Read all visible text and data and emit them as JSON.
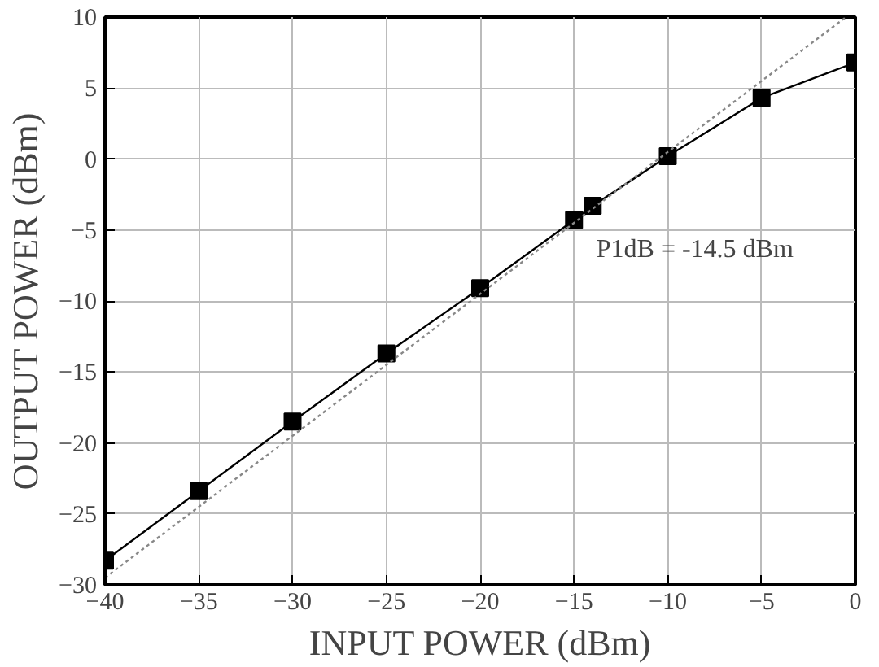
{
  "chart_data": {
    "type": "line",
    "xlabel": "INPUT POWER (dBm)",
    "ylabel": "OUTPUT POWER (dBm)",
    "x": [
      -40,
      -35,
      -30,
      -25,
      -20,
      -15,
      -14,
      -10,
      -5,
      0
    ],
    "series": [
      {
        "color": "#000000",
        "values": [
          -28.3,
          -23.4,
          -18.5,
          -13.7,
          -9.1,
          -4.3,
          -3.3,
          0.2,
          4.3,
          6.8
        ],
        "marker": "square",
        "line_style": "solid"
      },
      {
        "color": "#888888",
        "x": [
          -40,
          -0.5
        ],
        "values": [
          -29.5,
          10
        ],
        "marker": "none",
        "line_style": "dotted"
      }
    ],
    "xlim": [
      -40,
      0
    ],
    "ylim": [
      -30,
      10
    ],
    "xticks": [
      -40,
      -35,
      -30,
      -25,
      -20,
      -15,
      -10,
      -5,
      0
    ],
    "yticks": [
      -30,
      -25,
      -20,
      -15,
      -10,
      -5,
      0,
      5,
      10
    ],
    "grid": true,
    "annotations": [
      {
        "text": "P1dB = -14.5 dBm",
        "x": -14.5,
        "y": -3.8
      }
    ]
  }
}
